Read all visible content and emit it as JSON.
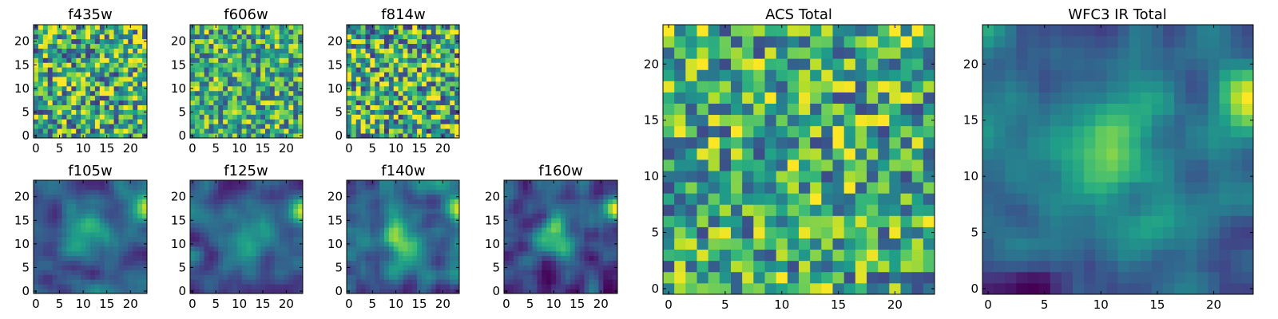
{
  "chart_data": {
    "type": "heatmap",
    "colormap": "viridis",
    "panels": [
      {
        "id": "f435w",
        "title": "f435w",
        "grid": [
          24,
          24
        ],
        "xticks": [
          0,
          5,
          10,
          15,
          20
        ],
        "yticks": [
          0,
          5,
          10,
          15,
          20
        ],
        "seed": 11,
        "mode": "noise",
        "contrast": 0.9
      },
      {
        "id": "f606w",
        "title": "f606w",
        "grid": [
          24,
          24
        ],
        "xticks": [
          0,
          5,
          10,
          15,
          20
        ],
        "yticks": [
          0,
          5,
          10,
          15,
          20
        ],
        "seed": 23,
        "mode": "noise",
        "contrast": 0.75
      },
      {
        "id": "f814w",
        "title": "f814w",
        "grid": [
          24,
          24
        ],
        "xticks": [
          0,
          5,
          10,
          15,
          20
        ],
        "yticks": [
          0,
          5,
          10,
          15,
          20
        ],
        "seed": 37,
        "mode": "noise",
        "contrast": 0.95
      },
      {
        "id": "f105w",
        "title": "f105w",
        "grid": [
          24,
          24
        ],
        "xticks": [
          0,
          5,
          10,
          15,
          20
        ],
        "yticks": [
          0,
          5,
          10,
          15,
          20
        ],
        "seed": 41,
        "mode": "smooth",
        "contrast": 0.8
      },
      {
        "id": "f125w",
        "title": "f125w",
        "grid": [
          24,
          24
        ],
        "xticks": [
          0,
          5,
          10,
          15,
          20
        ],
        "yticks": [
          0,
          5,
          10,
          15,
          20
        ],
        "seed": 53,
        "mode": "smooth",
        "contrast": 0.85
      },
      {
        "id": "f140w",
        "title": "f140w",
        "grid": [
          24,
          24
        ],
        "xticks": [
          0,
          5,
          10,
          15,
          20
        ],
        "yticks": [
          0,
          5,
          10,
          15,
          20
        ],
        "seed": 67,
        "mode": "smooth",
        "contrast": 0.85
      },
      {
        "id": "f160w",
        "title": "f160w",
        "grid": [
          24,
          24
        ],
        "xticks": [
          0,
          5,
          10,
          15,
          20
        ],
        "yticks": [
          0,
          5,
          10,
          15,
          20
        ],
        "seed": 79,
        "mode": "smooth",
        "contrast": 1.0
      },
      {
        "id": "acs-total",
        "title": "ACS Total",
        "grid": [
          24,
          24
        ],
        "xticks": [
          0,
          5,
          10,
          15,
          20
        ],
        "yticks": [
          0,
          5,
          10,
          15,
          20
        ],
        "seed": 83,
        "mode": "noise",
        "contrast": 0.8
      },
      {
        "id": "wfc3-ir-total",
        "title": "WFC3 IR Total",
        "grid": [
          24,
          24
        ],
        "xticks": [
          0,
          5,
          10,
          15,
          20
        ],
        "yticks": [
          0,
          5,
          10,
          15,
          20
        ],
        "seed": 97,
        "mode": "smooth",
        "contrast": 1.0
      }
    ]
  }
}
